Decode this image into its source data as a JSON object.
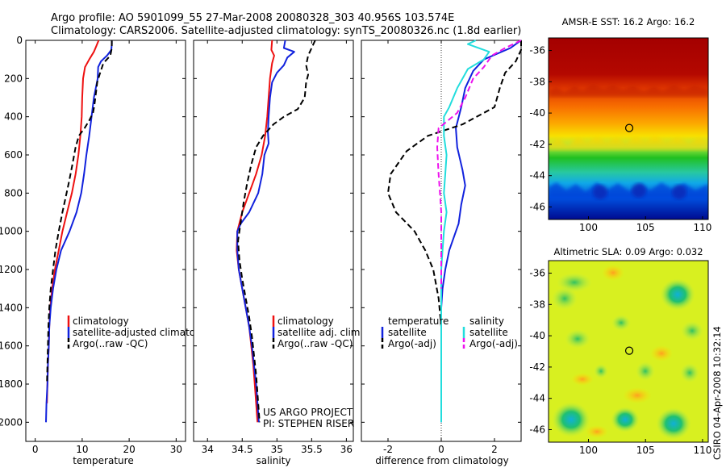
{
  "title_line1": "Argo profile: AO 5901099_55 27-Mar-2008 20080328_303 40.956S 103.574E",
  "title_line2": "Climatology: CARS2006. Satellite-adjusted climatology: synTS_20080326.nc (1.8d earlier)",
  "side_label": "CSIRO 04-Apr-2008 10:32:14",
  "colors": {
    "climatology": "#ee1111",
    "satellite": "#1122dd",
    "argo": "#000000",
    "sal_satellite": "#22dddd",
    "sal_argo": "#ee11ee"
  },
  "chart_data": [
    {
      "type": "line",
      "xlabel": "temperature",
      "ylabel": "depth",
      "xlim": [
        -2,
        32
      ],
      "ylim": [
        0,
        2100
      ],
      "xticks": [
        0,
        10,
        20,
        30
      ],
      "yticks": [
        0,
        200,
        400,
        600,
        800,
        1000,
        1200,
        1400,
        1600,
        1800,
        2000
      ],
      "legend": [
        "climatology",
        "satellite-adjusted climatology",
        "Argo(..raw -QC)"
      ],
      "series": [
        {
          "name": "climatology",
          "color_key": "climatology",
          "style": "solid",
          "points": [
            [
              13.5,
              0
            ],
            [
              13,
              30
            ],
            [
              12.5,
              60
            ],
            [
              11.5,
              100
            ],
            [
              10.6,
              140
            ],
            [
              10.2,
              200
            ],
            [
              10,
              300
            ],
            [
              9.9,
              400
            ],
            [
              9.6,
              500
            ],
            [
              9.2,
              600
            ],
            [
              8.6,
              700
            ],
            [
              7.8,
              800
            ],
            [
              6.8,
              900
            ],
            [
              5.8,
              1000
            ],
            [
              5,
              1100
            ],
            [
              4.2,
              1200
            ],
            [
              3.6,
              1300
            ],
            [
              3.2,
              1400
            ],
            [
              3,
              1500
            ],
            [
              2.9,
              1600
            ],
            [
              2.7,
              1700
            ],
            [
              2.6,
              1800
            ],
            [
              2.5,
              1900
            ]
          ]
        },
        {
          "name": "satellite-adjusted climatology",
          "color_key": "satellite",
          "style": "solid",
          "points": [
            [
              16.3,
              0
            ],
            [
              16.3,
              20
            ],
            [
              16.2,
              50
            ],
            [
              15.3,
              80
            ],
            [
              14,
              110
            ],
            [
              13.4,
              140
            ],
            [
              13.3,
              200
            ],
            [
              12.5,
              300
            ],
            [
              12,
              400
            ],
            [
              11.5,
              500
            ],
            [
              10.9,
              600
            ],
            [
              10.4,
              700
            ],
            [
              9.8,
              800
            ],
            [
              8.8,
              900
            ],
            [
              7.3,
              1000
            ],
            [
              5.5,
              1100
            ],
            [
              4.5,
              1200
            ],
            [
              3.8,
              1300
            ],
            [
              3.3,
              1400
            ],
            [
              3,
              1500
            ],
            [
              2.9,
              1600
            ],
            [
              2.7,
              1700
            ],
            [
              2.6,
              1800
            ],
            [
              2.4,
              1900
            ],
            [
              2.3,
              2000
            ]
          ]
        },
        {
          "name": "Argo(..raw -QC)",
          "color_key": "argo",
          "style": "dashed",
          "points": [
            [
              16.3,
              0
            ],
            [
              16.3,
              40
            ],
            [
              16,
              80
            ],
            [
              14.5,
              120
            ],
            [
              13.7,
              180
            ],
            [
              13.2,
              220
            ],
            [
              13,
              260
            ],
            [
              12.8,
              300
            ],
            [
              12.6,
              340
            ],
            [
              12.3,
              380
            ],
            [
              11.5,
              420
            ],
            [
              10.5,
              460
            ],
            [
              9.3,
              500
            ],
            [
              8.6,
              560
            ],
            [
              8,
              640
            ],
            [
              7.2,
              740
            ],
            [
              6.5,
              820
            ],
            [
              5.8,
              900
            ],
            [
              5,
              1000
            ],
            [
              4.3,
              1100
            ],
            [
              3.8,
              1200
            ],
            [
              3.3,
              1300
            ],
            [
              3,
              1400
            ],
            [
              2.8,
              1500
            ],
            [
              2.7,
              1600
            ],
            [
              2.6,
              1700
            ],
            [
              2.5,
              1800
            ]
          ]
        }
      ]
    },
    {
      "type": "line",
      "xlabel": "salinity",
      "xlim": [
        33.8,
        36.1
      ],
      "ylim": [
        0,
        2100
      ],
      "xticks": [
        34,
        34.5,
        35,
        35.5,
        36
      ],
      "legend": [
        "climatology",
        "satellite adj. clim.",
        "Argo(..raw -QC)"
      ],
      "annotation": [
        "US ARGO PROJECT",
        "PI: STEPHEN RISER"
      ],
      "series": [
        {
          "name": "climatology",
          "color_key": "climatology",
          "style": "solid",
          "points": [
            [
              34.93,
              0
            ],
            [
              34.92,
              50
            ],
            [
              34.96,
              80
            ],
            [
              34.93,
              120
            ],
            [
              34.9,
              200
            ],
            [
              34.88,
              300
            ],
            [
              34.86,
              400
            ],
            [
              34.83,
              500
            ],
            [
              34.78,
              600
            ],
            [
              34.7,
              700
            ],
            [
              34.6,
              800
            ],
            [
              34.5,
              900
            ],
            [
              34.43,
              1000
            ],
            [
              34.42,
              1100
            ],
            [
              34.45,
              1200
            ],
            [
              34.5,
              1300
            ],
            [
              34.55,
              1400
            ],
            [
              34.6,
              1500
            ],
            [
              34.63,
              1600
            ],
            [
              34.66,
              1700
            ],
            [
              34.68,
              1800
            ],
            [
              34.7,
              1900
            ],
            [
              34.72,
              2000
            ]
          ]
        },
        {
          "name": "satellite adj. clim.",
          "color_key": "satellite",
          "style": "solid",
          "points": [
            [
              35.12,
              0
            ],
            [
              35.1,
              40
            ],
            [
              35.25,
              60
            ],
            [
              35.15,
              90
            ],
            [
              35.1,
              130
            ],
            [
              35.0,
              170
            ],
            [
              34.93,
              220
            ],
            [
              34.9,
              300
            ],
            [
              34.88,
              400
            ],
            [
              34.87,
              480
            ],
            [
              34.88,
              540
            ],
            [
              34.82,
              600
            ],
            [
              34.79,
              700
            ],
            [
              34.73,
              800
            ],
            [
              34.6,
              900
            ],
            [
              34.48,
              960
            ],
            [
              34.43,
              1000
            ],
            [
              34.43,
              1100
            ],
            [
              34.45,
              1200
            ],
            [
              34.5,
              1300
            ],
            [
              34.55,
              1400
            ],
            [
              34.6,
              1500
            ],
            [
              34.64,
              1600
            ],
            [
              34.67,
              1700
            ],
            [
              34.7,
              1800
            ],
            [
              34.72,
              1900
            ],
            [
              34.74,
              2000
            ]
          ]
        },
        {
          "name": "Argo(..raw -QC)",
          "color_key": "argo",
          "style": "dashed",
          "points": [
            [
              35.55,
              0
            ],
            [
              35.5,
              40
            ],
            [
              35.45,
              80
            ],
            [
              35.42,
              130
            ],
            [
              35.45,
              180
            ],
            [
              35.42,
              220
            ],
            [
              35.4,
              300
            ],
            [
              35.3,
              360
            ],
            [
              35.1,
              400
            ],
            [
              34.95,
              440
            ],
            [
              34.8,
              500
            ],
            [
              34.7,
              560
            ],
            [
              34.63,
              650
            ],
            [
              34.57,
              750
            ],
            [
              34.52,
              850
            ],
            [
              34.48,
              950
            ],
            [
              34.44,
              1050
            ],
            [
              34.46,
              1150
            ],
            [
              34.5,
              1250
            ],
            [
              34.55,
              1350
            ],
            [
              34.6,
              1450
            ],
            [
              34.64,
              1550
            ],
            [
              34.67,
              1650
            ],
            [
              34.7,
              1750
            ],
            [
              34.73,
              1900
            ],
            [
              34.75,
              2000
            ]
          ]
        }
      ]
    },
    {
      "type": "line",
      "xlabel": "difference from climatology",
      "xlim": [
        -3,
        3
      ],
      "ylim": [
        0,
        2100
      ],
      "xticks": [
        -2,
        0,
        2
      ],
      "zero_line": 0,
      "legend_groups": [
        {
          "heading": "temperature",
          "items": [
            "satellite",
            "Argo(-adj)"
          ]
        },
        {
          "heading": "salinity",
          "items": [
            "satellite",
            "Argo(-adj)"
          ]
        }
      ],
      "series": [
        {
          "name": "temperature satellite",
          "color_key": "satellite",
          "style": "solid",
          "points": [
            [
              3,
              0
            ],
            [
              2.6,
              40
            ],
            [
              1.6,
              100
            ],
            [
              1.2,
              160
            ],
            [
              0.9,
              250
            ],
            [
              0.75,
              350
            ],
            [
              0.55,
              460
            ],
            [
              0.6,
              560
            ],
            [
              0.7,
              620
            ],
            [
              0.8,
              680
            ],
            [
              0.9,
              760
            ],
            [
              0.75,
              860
            ],
            [
              0.65,
              960
            ],
            [
              0.5,
              1020
            ],
            [
              0.3,
              1100
            ],
            [
              0.15,
              1200
            ],
            [
              0.05,
              1300
            ],
            [
              0,
              1400
            ],
            [
              0,
              2000
            ]
          ]
        },
        {
          "name": "temperature Argo(-adj)",
          "color_key": "argo",
          "style": "dashed",
          "points": [
            [
              3,
              0
            ],
            [
              3,
              50
            ],
            [
              2.8,
              110
            ],
            [
              2.4,
              170
            ],
            [
              2.2,
              250
            ],
            [
              2.0,
              350
            ],
            [
              0.8,
              440
            ],
            [
              -0.5,
              500
            ],
            [
              -1.3,
              580
            ],
            [
              -1.9,
              700
            ],
            [
              -2.0,
              800
            ],
            [
              -1.7,
              900
            ],
            [
              -1.0,
              1000
            ],
            [
              -0.6,
              1100
            ],
            [
              -0.3,
              1200
            ],
            [
              -0.1,
              1350
            ],
            [
              0,
              1500
            ],
            [
              0,
              1800
            ]
          ]
        },
        {
          "name": "salinity satellite",
          "color_key": "sal_satellite",
          "style": "solid",
          "points": [
            [
              1.3,
              0
            ],
            [
              1.0,
              20
            ],
            [
              1.8,
              60
            ],
            [
              1.6,
              100
            ],
            [
              1.0,
              150
            ],
            [
              0.6,
              250
            ],
            [
              0.3,
              350
            ],
            [
              0.1,
              400
            ],
            [
              0.1,
              500
            ],
            [
              0.2,
              600
            ],
            [
              0.15,
              700
            ],
            [
              0.1,
              800
            ],
            [
              0.2,
              900
            ],
            [
              0.1,
              1000
            ],
            [
              0.05,
              1100
            ],
            [
              0,
              1200
            ],
            [
              0,
              1400
            ],
            [
              0,
              2000
            ]
          ]
        },
        {
          "name": "salinity Argo(-adj)",
          "color_key": "sal_argo",
          "style": "dashed",
          "points": [
            [
              3,
              0
            ],
            [
              2.4,
              40
            ],
            [
              1.9,
              80
            ],
            [
              1.6,
              140
            ],
            [
              1.2,
              200
            ],
            [
              0.9,
              300
            ],
            [
              0.6,
              380
            ],
            [
              -0.1,
              460
            ],
            [
              -0.15,
              560
            ],
            [
              -0.1,
              700
            ],
            [
              -0.05,
              800
            ],
            [
              0,
              900
            ],
            [
              0,
              1100
            ],
            [
              0,
              1300
            ]
          ]
        }
      ]
    },
    {
      "type": "heatmap",
      "title": "AMSR-E SST: 16.2 Argo: 16.2",
      "xlim": [
        96.5,
        110.5
      ],
      "ylim": [
        -46.8,
        -35.2
      ],
      "xticks": [
        100,
        105,
        110
      ],
      "yticks": [
        -36,
        -38,
        -40,
        -42,
        -44,
        -46
      ],
      "marker": [
        103.574,
        -40.956
      ]
    },
    {
      "type": "heatmap",
      "title": "Altimetric SLA: 0.09 Argo: 0.032",
      "xlim": [
        96.5,
        110.5
      ],
      "ylim": [
        -46.8,
        -35.2
      ],
      "xticks": [
        100,
        105,
        110
      ],
      "yticks": [
        -36,
        -38,
        -40,
        -42,
        -44,
        -46
      ],
      "marker": [
        103.574,
        -40.956
      ]
    }
  ]
}
